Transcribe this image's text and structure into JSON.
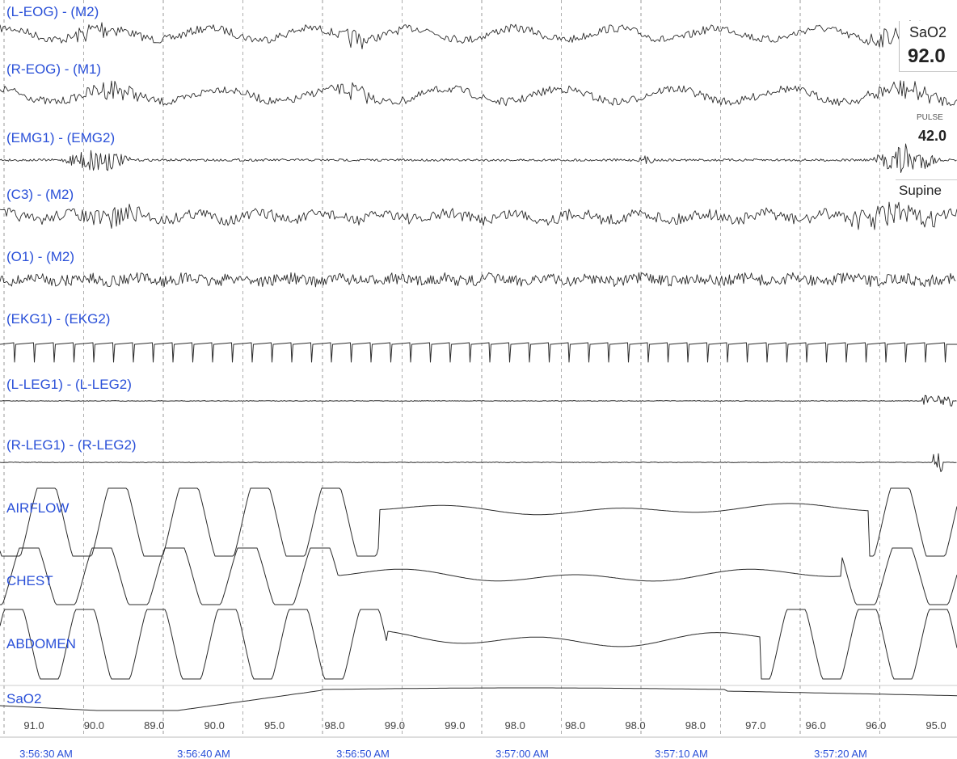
{
  "chart_data": {
    "type": "line",
    "channels": [
      {
        "label": "(L-EOG) - (M2)"
      },
      {
        "label": "(R-EOG) - (M1)"
      },
      {
        "label": "(EMG1) - (EMG2)"
      },
      {
        "label": "(C3) - (M2)"
      },
      {
        "label": "(O1) - (M2)"
      },
      {
        "label": "(EKG1) - (EKG2)"
      },
      {
        "label": "(L-LEG1) - (L-LEG2)"
      },
      {
        "label": "(R-LEG1) - (R-LEG2)"
      },
      {
        "label": "AIRFLOW"
      },
      {
        "label": "CHEST"
      },
      {
        "label": "ABDOMEN"
      },
      {
        "label": "SaO2"
      }
    ],
    "sao2_values": [
      "91.0",
      "90.0",
      "89.0",
      "90.0",
      "95.0",
      "98.0",
      "99.0",
      "99.0",
      "98.0",
      "98.0",
      "98.0",
      "98.0",
      "97.0",
      "96.0",
      "96.0",
      "95.0"
    ],
    "time_labels": [
      "3:56:30 AM",
      "3:56:40 AM",
      "3:56:50 AM",
      "3:57:00 AM",
      "3:57:10 AM",
      "3:57:20 AM"
    ],
    "grid": true
  },
  "readouts": {
    "sao2_label": "SaO2",
    "sao2_value": "92.0",
    "pulse_label": "PULSE",
    "pulse_value": "42.0",
    "position_value": "Supine"
  },
  "colors": {
    "label": "#2a50d8",
    "trace": "#2b2b2b",
    "grid": "#9a9a9a"
  }
}
